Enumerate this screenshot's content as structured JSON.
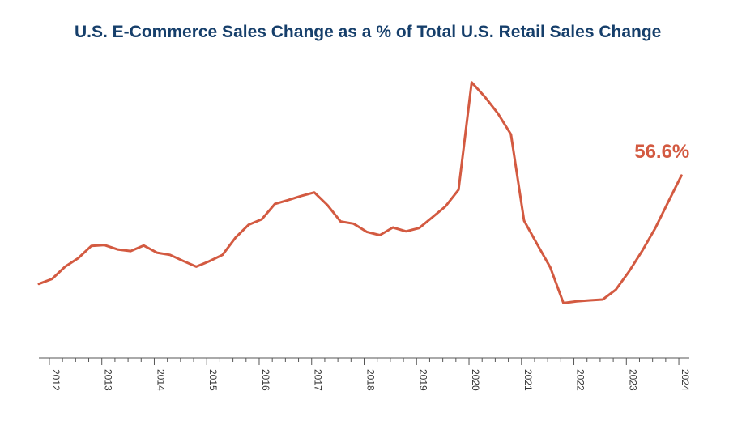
{
  "chart_data": {
    "type": "line",
    "title": "U.S. E-Commerce Sales Change as a % of Total U.S. Retail Sales Change",
    "xlabel": "",
    "ylabel": "",
    "grid": false,
    "legend": "none",
    "end_label": "56.6%",
    "colors": {
      "line": "#d35a41",
      "title": "#163f6b",
      "axis": "#555555"
    },
    "x_tick_labels": [
      "2012",
      "2013",
      "2014",
      "2015",
      "2016",
      "2017",
      "2018",
      "2019",
      "2020",
      "2021",
      "2022",
      "2023",
      "2024"
    ],
    "x_range": [
      2011.8,
      2024.2
    ],
    "ylim": [
      -10,
      100
    ],
    "series": [
      {
        "x": [
          2011.8,
          2012.05,
          2012.3,
          2012.55,
          2012.8,
          2013.05,
          2013.3,
          2013.55,
          2013.8,
          2014.05,
          2014.3,
          2014.55,
          2014.8,
          2015.05,
          2015.3,
          2015.55,
          2015.8,
          2016.05,
          2016.3,
          2016.55,
          2016.8,
          2017.05,
          2017.3,
          2017.55,
          2017.8,
          2018.05,
          2018.3,
          2018.55,
          2018.8,
          2019.05,
          2019.3,
          2019.55,
          2019.8,
          2020.05,
          2020.3,
          2020.55,
          2020.8,
          2021.05,
          2021.3,
          2021.55,
          2021.8,
          2022.05,
          2022.3,
          2022.55,
          2022.8,
          2023.05,
          2023.3,
          2023.55,
          2023.8,
          2024.05
        ],
        "values": [
          17.0,
          18.8,
          23.3,
          26.4,
          30.9,
          31.2,
          29.6,
          29.0,
          31.0,
          28.4,
          27.6,
          25.4,
          23.3,
          25.3,
          27.6,
          33.9,
          38.6,
          40.6,
          46.2,
          47.6,
          49.1,
          50.4,
          45.8,
          39.8,
          39.0,
          36.0,
          34.8,
          37.6,
          36.2,
          37.4,
          41.3,
          45.3,
          51.4,
          90.6,
          85.4,
          79.3,
          71.6,
          40.1,
          31.5,
          23.0,
          10.0,
          10.6,
          11.0,
          11.3,
          14.9,
          21.5,
          29.0,
          37.3,
          47.0,
          56.6
        ]
      }
    ]
  }
}
